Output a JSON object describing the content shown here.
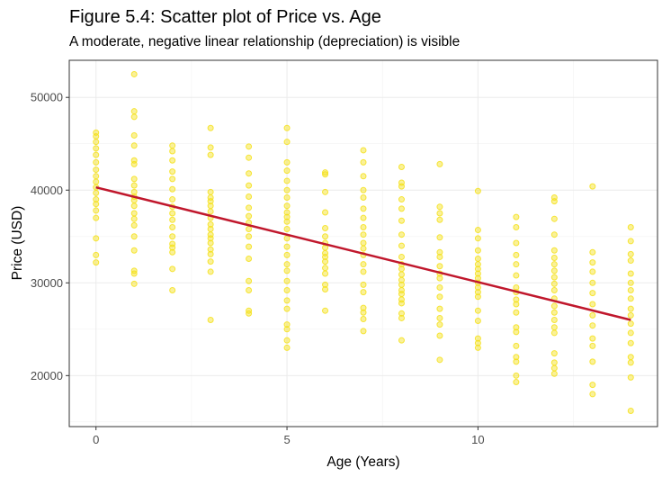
{
  "chart_data": {
    "type": "scatter",
    "title": "Figure 5.4: Scatter plot of Price vs. Age",
    "subtitle": "A moderate, negative linear relationship (depreciation) is visible",
    "xlabel": "Age (Years)",
    "ylabel": "Price (USD)",
    "xlim": [
      -0.7,
      14.7
    ],
    "ylim": [
      14500,
      54000
    ],
    "x_ticks": [
      0,
      5,
      10
    ],
    "y_ticks": [
      20000,
      30000,
      40000,
      50000
    ],
    "grid": true,
    "point_color": "#F5E11A",
    "line_color": "#C0172C",
    "trend_line": {
      "x": [
        0,
        14
      ],
      "y": [
        40300,
        26000
      ]
    },
    "points": [
      {
        "x": 0,
        "y": [
          46200,
          45800,
          45200,
          44500,
          43800,
          43000,
          42200,
          41500,
          40900,
          40300,
          39700,
          39000,
          38500,
          37800,
          37000,
          34800,
          33000,
          32200
        ]
      },
      {
        "x": 1,
        "y": [
          52500,
          48500,
          47900,
          45900,
          44800,
          43200,
          42800,
          41200,
          40500,
          39800,
          39300,
          38900,
          38300,
          37500,
          36900,
          36200,
          35000,
          33500,
          31300,
          31000,
          29900
        ]
      },
      {
        "x": 2,
        "y": [
          44800,
          44200,
          43200,
          42000,
          41200,
          40100,
          39000,
          38200,
          37500,
          36800,
          36000,
          35000,
          34200,
          33800,
          33300,
          31500,
          29200
        ]
      },
      {
        "x": 3,
        "y": [
          46700,
          44600,
          43800,
          39800,
          39200,
          38800,
          38300,
          37700,
          37000,
          36300,
          35800,
          35200,
          34800,
          34300,
          33600,
          33100,
          32300,
          31200,
          26000
        ]
      },
      {
        "x": 4,
        "y": [
          44700,
          43500,
          41800,
          40500,
          39300,
          38100,
          37200,
          36500,
          35800,
          35000,
          33900,
          32600,
          30200,
          29200,
          27000,
          26700
        ]
      },
      {
        "x": 5,
        "y": [
          46700,
          45200,
          43000,
          42100,
          41000,
          40000,
          39200,
          38300,
          37600,
          37100,
          36600,
          35800,
          34800,
          33900,
          33000,
          32000,
          31300,
          30200,
          29200,
          28100,
          27200,
          25500,
          25000,
          23800,
          23000
        ]
      },
      {
        "x": 6,
        "y": [
          41900,
          41700,
          39800,
          37600,
          35900,
          35000,
          34300,
          33800,
          33200,
          32800,
          32300,
          31600,
          31000,
          29800,
          29300,
          27000
        ]
      },
      {
        "x": 7,
        "y": [
          44300,
          43000,
          41500,
          40000,
          39200,
          38000,
          37000,
          36000,
          35200,
          34300,
          33700,
          33000,
          32000,
          31200,
          29800,
          29000,
          27300,
          26800,
          26100,
          24800
        ]
      },
      {
        "x": 8,
        "y": [
          42500,
          40800,
          40400,
          39000,
          38000,
          36700,
          35200,
          34000,
          32800,
          32000,
          31500,
          30900,
          30300,
          29800,
          29200,
          28800,
          28200,
          27800,
          26700,
          26200,
          23800
        ]
      },
      {
        "x": 9,
        "y": [
          42800,
          38200,
          37500,
          36800,
          34900,
          33300,
          32800,
          31800,
          31000,
          30500,
          29500,
          28500,
          27200,
          26200,
          25500,
          24300,
          21700
        ]
      },
      {
        "x": 10,
        "y": [
          39900,
          35700,
          34800,
          33500,
          32600,
          32000,
          31500,
          31000,
          30500,
          30000,
          29500,
          29000,
          28500,
          27000,
          25900,
          24000,
          23500,
          23000
        ]
      },
      {
        "x": 11,
        "y": [
          37100,
          36000,
          34300,
          33000,
          32000,
          30800,
          29500,
          29000,
          28200,
          27700,
          26800,
          25200,
          24700,
          23200,
          22000,
          21500,
          20000,
          19300
        ]
      },
      {
        "x": 12,
        "y": [
          39200,
          38800,
          36900,
          35200,
          33500,
          32700,
          32000,
          31300,
          30600,
          29900,
          29200,
          28300,
          27500,
          26800,
          26000,
          25200,
          24600,
          22400,
          21400,
          20800,
          20200
        ]
      },
      {
        "x": 13,
        "y": [
          40400,
          33300,
          32200,
          31200,
          30000,
          28900,
          27700,
          26500,
          25400,
          24000,
          23200,
          21500,
          19000,
          18000
        ]
      },
      {
        "x": 14,
        "y": [
          36000,
          34500,
          33100,
          32400,
          31000,
          30000,
          29200,
          28300,
          27200,
          26500,
          25600,
          24600,
          23500,
          22000,
          21400,
          19800,
          16200
        ]
      }
    ]
  }
}
